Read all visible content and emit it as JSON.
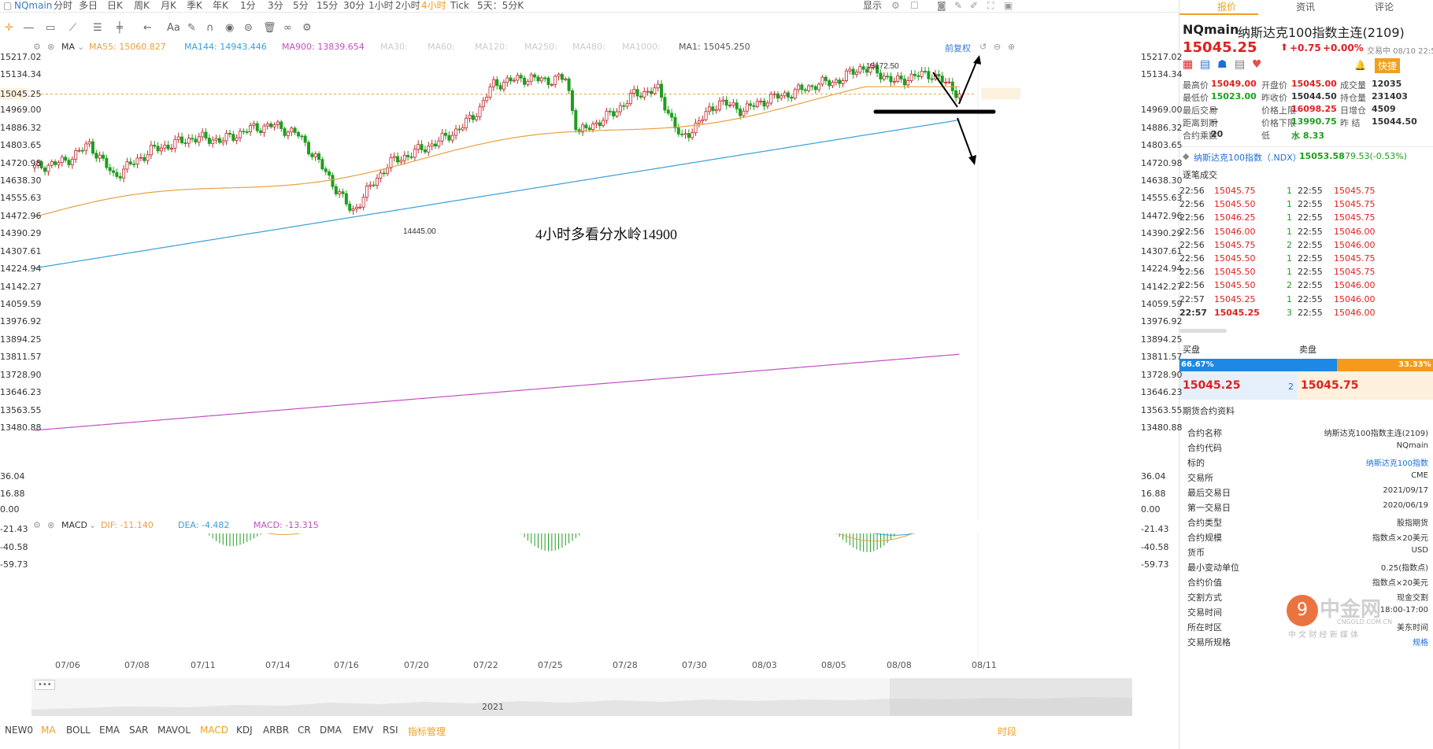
{
  "topbar": {
    "symbol": "NQmain",
    "periods": [
      "分时",
      "多日",
      "日K",
      "周K",
      "月K",
      "季K",
      "年K",
      "1分",
      "3分",
      "5分",
      "15分",
      "30分",
      "1小时",
      "2小时",
      "4小时",
      "Tick",
      "5天：5分K"
    ],
    "active_period": "4小时",
    "display": "显示"
  },
  "main_legend": {
    "indicator": "MA",
    "ma55": "MA55: 15060.827",
    "ma144": "MA144: 14943.446",
    "ma900": "MA900: 13839.654",
    "ma30": "MA30:",
    "ma60": "MA60:",
    "ma120": "MA120:",
    "ma250": "MA250:",
    "ma480": "MA480:",
    "ma1000": "MA1000:",
    "ma1": "MA1: 15045.250",
    "restore": "前复权"
  },
  "colors": {
    "ma55": "#e8a040",
    "ma144": "#3aa0d8",
    "ma900": "#c050c0",
    "up": "#c0282d",
    "down": "#1e9e1e",
    "macd_dif": "#e8a040",
    "macd_dea": "#3aa0d8"
  },
  "price_axis": {
    "labels": [
      "15217.02",
      "15134.34",
      "15045.25",
      "14969.00",
      "14886.32",
      "14803.65",
      "14720.98",
      "14638.30",
      "14555.63",
      "14472.96",
      "14390.29",
      "14307.61",
      "14224.94",
      "14142.27",
      "14059.59",
      "13976.92",
      "13894.25",
      "13811.57",
      "13728.90",
      "13646.23",
      "13563.55",
      "13480.88"
    ]
  },
  "annotations": {
    "high": "15172.50",
    "low": "14445.00",
    "note": "4小时多看分水岭14900"
  },
  "macd_legend": {
    "name": "MACD",
    "dif": "DIF: -11.140",
    "dea": "DEA: -4.482",
    "macd": "MACD: -13.315"
  },
  "macd_axis": [
    "36.04",
    "16.88",
    "0.00",
    "-21.43",
    "-40.58",
    "-59.73"
  ],
  "dates": [
    "07/06",
    "07/08",
    "07/11",
    "07/14",
    "07/16",
    "07/20",
    "07/22",
    "07/25",
    "07/28",
    "07/30",
    "08/03",
    "08/05",
    "08/08",
    "08/11"
  ],
  "navigator_year": "2021",
  "bottom": {
    "indicators": [
      "NEW0",
      "MA",
      "BOLL",
      "EMA",
      "SAR",
      "MAVOL",
      "MACD",
      "KDJ",
      "ARBR",
      "CR",
      "DMA",
      "EMV",
      "RSI",
      "指标管理"
    ],
    "active": [
      "MA",
      "MACD"
    ],
    "right": "时段"
  },
  "right": {
    "tabs": [
      "报价",
      "资讯",
      "评论"
    ],
    "title_code": "NQmain",
    "title_name": "纳斯达克100指数主连(2109)",
    "price": "15045.25",
    "change": "+0.75",
    "change_pct": "+0.00%",
    "status": "交易中 08/10 22:57:06",
    "quick": "快捷",
    "stats": [
      {
        "label": "最高价",
        "value": "15049.00",
        "vc": "red"
      },
      {
        "label": "开盘价",
        "value": "15045.00",
        "vc": "red"
      },
      {
        "label": "成交量",
        "value": "12035"
      },
      {
        "label": "最低价",
        "value": "15023.00",
        "vc": "green"
      },
      {
        "label": "昨收价",
        "value": "15044.50"
      },
      {
        "label": "持仓量",
        "value": "231403"
      },
      {
        "label": "最后交易",
        "value": "--"
      },
      {
        "label": "价格上限",
        "value": "16098.25",
        "vc": "red"
      },
      {
        "label": "日增仓",
        "value": "4509"
      },
      {
        "label": "距离到期",
        "value": "--"
      },
      {
        "label": "价格下限",
        "value": "13990.75",
        "vc": "green"
      },
      {
        "label": "昨  结",
        "value": "15044.50"
      },
      {
        "label": "合约乘数",
        "value": "20"
      },
      {
        "label": "低",
        "value": "水 8.33",
        "vc": "green"
      }
    ],
    "index_name": "纳斯达克100指数（.NDX）",
    "index_price": "15053.58",
    "index_change": "-79.53(-0.53%)",
    "trades_title": "逐笔成交",
    "trades": [
      {
        "t": "22:56",
        "p": "15045.75",
        "q": "1",
        "t2": "22:55",
        "p2": "15045.75"
      },
      {
        "t": "22:56",
        "p": "15045.50",
        "q": "1",
        "t2": "22:55",
        "p2": "15045.75"
      },
      {
        "t": "22:56",
        "p": "15046.25",
        "q": "1",
        "t2": "22:55",
        "p2": "15045.75"
      },
      {
        "t": "22:56",
        "p": "15046.00",
        "q": "1",
        "t2": "22:55",
        "p2": "15046.00"
      },
      {
        "t": "22:56",
        "p": "15045.75",
        "q": "2",
        "t2": "22:55",
        "p2": "15046.00"
      },
      {
        "t": "22:56",
        "p": "15045.50",
        "q": "1",
        "t2": "22:55",
        "p2": "15045.75"
      },
      {
        "t": "22:56",
        "p": "15045.50",
        "q": "1",
        "t2": "22:55",
        "p2": "15045.75"
      },
      {
        "t": "22:56",
        "p": "15045.50",
        "q": "2",
        "t2": "22:55",
        "p2": "15046.00"
      },
      {
        "t": "22:57",
        "p": "15045.25",
        "q": "1",
        "t2": "22:55",
        "p2": "15046.00"
      },
      {
        "t": "22:57",
        "p": "15045.25",
        "q": "3",
        "t2": "22:55",
        "p2": "15046.00"
      }
    ],
    "buy_label": "买盘",
    "sell_label": "卖盘",
    "buy_pct": "66.67%",
    "sell_pct": "33.33%",
    "bid": "15045.25",
    "bid_qty": "2",
    "ask": "15045.75",
    "contract_title": "期货合约资料",
    "contract": [
      {
        "k": "合约名称",
        "v": "纳斯达克100指数主连(2109)"
      },
      {
        "k": "合约代码",
        "v": "NQmain"
      },
      {
        "k": "标的",
        "v": "纳斯达克100指数"
      },
      {
        "k": "交易所",
        "v": "CME"
      },
      {
        "k": "最后交易日",
        "v": "2021/09/17"
      },
      {
        "k": "第一交易日",
        "v": "2020/06/19"
      },
      {
        "k": "合约类型",
        "v": "股指期货"
      },
      {
        "k": "合约规模",
        "v": "指数点×20美元"
      },
      {
        "k": "货币",
        "v": "USD"
      },
      {
        "k": "最小变动单位",
        "v": "0.25(指数点)"
      },
      {
        "k": "合约价值",
        "v": "指数点×20美元"
      },
      {
        "k": "交割方式",
        "v": "现金交割"
      },
      {
        "k": "交易时间",
        "v": "18:00-17:00"
      },
      {
        "k": "所在时区",
        "v": "美东时间"
      },
      {
        "k": "交易所规格",
        "v": "规格"
      }
    ],
    "watermark_cn": "中金网",
    "watermark_en": "CNGOLD.COM.CN",
    "watermark_sub": "中 文 财 经 新 媒 体"
  }
}
